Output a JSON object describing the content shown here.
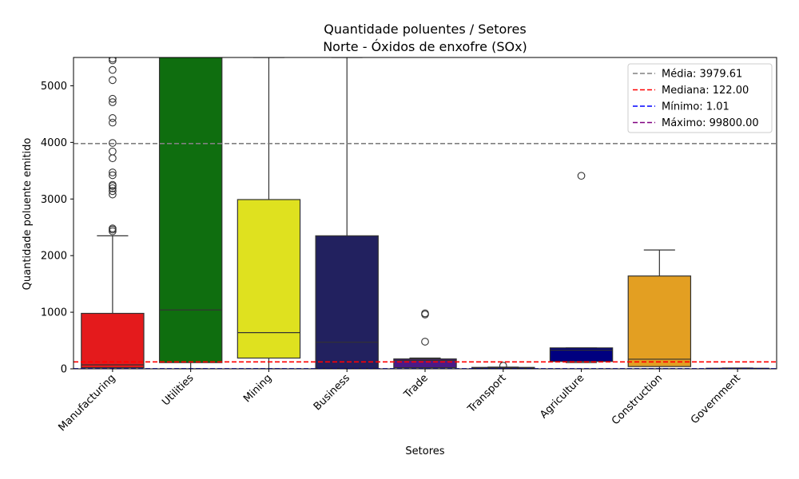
{
  "chart_data": {
    "type": "box",
    "title_line1": "Quantidade poluentes / Setores",
    "title_line2": "Norte - Óxidos de enxofre (SOx)",
    "xlabel": "Setores",
    "ylabel": "Quantidade poluente emitido",
    "ylim": [
      0,
      5500
    ],
    "yticks": [
      0,
      1000,
      2000,
      3000,
      4000,
      5000
    ],
    "categories": [
      "Manufacturing",
      "Utilities",
      "Mining",
      "Business",
      "Trade",
      "Transport",
      "Agriculture",
      "Construction",
      "Government"
    ],
    "boxes": [
      {
        "category": "Manufacturing",
        "color": "#e41a1c",
        "whisker_low": 1,
        "q1": 20,
        "median": 70,
        "q3": 980,
        "whisker_high": 2350,
        "outliers": [
          2430,
          2460,
          2480,
          3080,
          3140,
          3190,
          3230,
          3250,
          3420,
          3470,
          3720,
          3840,
          3990,
          4350,
          4430,
          4710,
          4770,
          5100,
          5280,
          5450,
          5480
        ]
      },
      {
        "category": "Utilities",
        "color": "#0f6e0f",
        "whisker_low": 1,
        "q1": 110,
        "median": 1040,
        "q3": 5500,
        "whisker_high": 5500,
        "outliers": []
      },
      {
        "category": "Mining",
        "color": "#dfe11f",
        "whisker_low": 1,
        "q1": 190,
        "median": 640,
        "q3": 2990,
        "whisker_high": 5500,
        "outliers": []
      },
      {
        "category": "Business",
        "color": "#22215f",
        "whisker_low": 1,
        "q1": 1,
        "median": 470,
        "q3": 2350,
        "whisker_high": 5500,
        "outliers": []
      },
      {
        "category": "Trade",
        "color": "#4b1a87",
        "whisker_low": 1,
        "q1": 20,
        "median": 150,
        "q3": 175,
        "whisker_high": 190,
        "outliers": [
          480,
          960,
          980
        ]
      },
      {
        "category": "Transport",
        "color": "#1e7a1e",
        "whisker_low": 1,
        "q1": 5,
        "median": 15,
        "q3": 25,
        "whisker_high": 30,
        "outliers": [
          55
        ]
      },
      {
        "category": "Agriculture",
        "color": "#000080",
        "whisker_low": 110,
        "q1": 130,
        "median": 330,
        "q3": 370,
        "whisker_high": 370,
        "outliers": [
          3410
        ]
      },
      {
        "category": "Construction",
        "color": "#e39f22",
        "whisker_low": 1,
        "q1": 40,
        "median": 170,
        "q3": 1640,
        "whisker_high": 2100,
        "outliers": []
      },
      {
        "category": "Government",
        "color": "#6b2a2a",
        "whisker_low": 1,
        "q1": 1,
        "median": 5,
        "q3": 10,
        "whisker_high": 15,
        "outliers": []
      }
    ],
    "reference_lines": [
      {
        "label": "Média: 3979.61",
        "value": 3979.61,
        "color": "#808080"
      },
      {
        "label": "Mediana: 122.00",
        "value": 122.0,
        "color": "#ff0000"
      },
      {
        "label": "Mínimo: 1.01",
        "value": 1.01,
        "color": "#0000ff"
      },
      {
        "label": "Máximo: 99800.00",
        "value": 99800.0,
        "color": "#800080"
      }
    ],
    "legend_position": "top-right",
    "grid": false
  }
}
